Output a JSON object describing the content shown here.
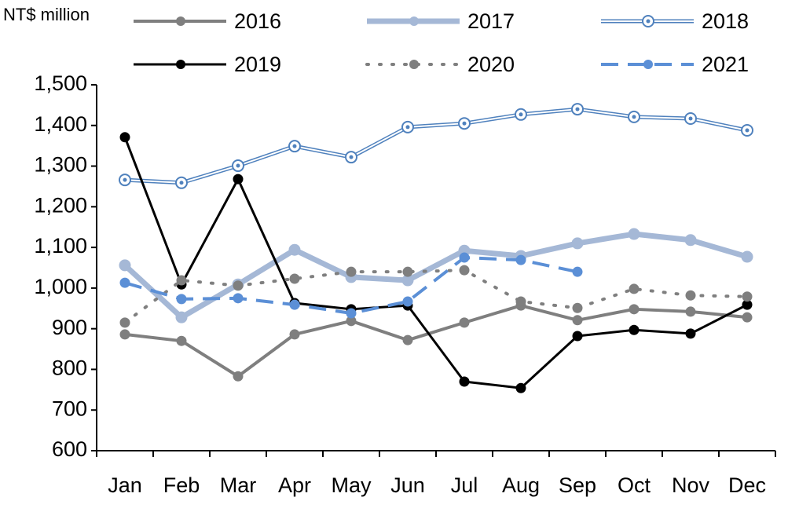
{
  "chart_data": {
    "type": "line",
    "y_label": "NT$ million",
    "categories": [
      "Jan",
      "Feb",
      "Mar",
      "Apr",
      "May",
      "Jun",
      "Jul",
      "Aug",
      "Sep",
      "Oct",
      "Nov",
      "Dec"
    ],
    "ylim": [
      600,
      1500
    ],
    "yticks": [
      600,
      700,
      800,
      900,
      {
        "value": 1000,
        "label": "1,000"
      },
      {
        "value": 1100,
        "label": "1,100"
      },
      {
        "value": 1200,
        "label": "1,200"
      },
      {
        "value": 1300,
        "label": "1,300"
      },
      {
        "value": 1400,
        "label": "1,400"
      },
      {
        "value": 1500,
        "label": "1,500"
      }
    ],
    "series": [
      {
        "name": "2016",
        "color": "#7f7f7f",
        "line_width": 4,
        "dash": "solid",
        "values": [
          886,
          870,
          783,
          886,
          919,
          872,
          915,
          957,
          921,
          948,
          942,
          928
        ]
      },
      {
        "name": "2017",
        "color": "#a5b8d6",
        "line_width": 7,
        "dash": "solid",
        "values": [
          1056,
          928,
          1009,
          1094,
          1027,
          1019,
          1092,
          1079,
          1110,
          1133,
          1118,
          1077
        ]
      },
      {
        "name": "2018",
        "color": "#4f81bd",
        "line_width": 5,
        "dash": "solid",
        "double": true,
        "values": [
          1266,
          1259,
          1301,
          1349,
          1322,
          1396,
          1405,
          1427,
          1440,
          1421,
          1417,
          1388
        ]
      },
      {
        "name": "2019",
        "color": "#000000",
        "line_width": 3,
        "dash": "solid",
        "values": [
          1371,
          1009,
          1268,
          963,
          948,
          957,
          770,
          754,
          882,
          897,
          888,
          959
        ]
      },
      {
        "name": "2020",
        "color": "#7f7f7f",
        "line_width": 4,
        "dash": "dotted",
        "values": [
          915,
          1019,
          1006,
          1023,
          1040,
          1040,
          1044,
          967,
          951,
          998,
          982,
          979
        ]
      },
      {
        "name": "2021",
        "color": "#5b8fd6",
        "line_width": 4,
        "dash": "dashed",
        "values": [
          1013,
          973,
          975,
          959,
          938,
          967,
          1075,
          1069,
          1040,
          null,
          null,
          null
        ]
      }
    ]
  }
}
